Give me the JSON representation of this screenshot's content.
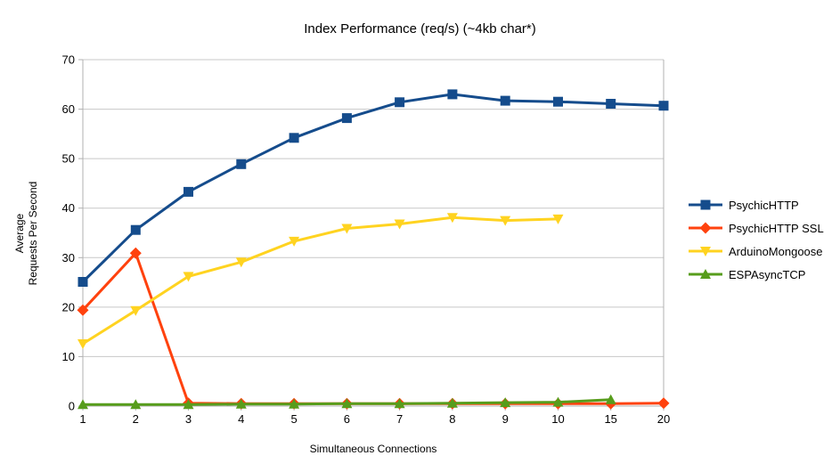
{
  "chart_data": {
    "type": "line",
    "title": "Index Performance (req/s) (~4kb char*)",
    "xlabel": "Simultaneous Connections",
    "ylabel": "Average Requests Per Second",
    "ylabel_lines": {
      "line1": "Average",
      "line2": "Requests Per Second"
    },
    "categories": [
      "1",
      "2",
      "3",
      "4",
      "5",
      "6",
      "7",
      "8",
      "9",
      "10",
      "15",
      "20"
    ],
    "yticks": [
      0,
      10,
      20,
      30,
      40,
      50,
      60,
      70
    ],
    "ylim": [
      0,
      70
    ],
    "grid": "horizontal-only",
    "legend_position": "right",
    "axis_color": "#b0b0b0",
    "grid_color": "#c8c8c8",
    "text_color": "#000000",
    "series": [
      {
        "name": "PsychicHTTP",
        "color": "#154c8c",
        "marker": "square",
        "values": [
          25.1,
          35.6,
          43.3,
          48.9,
          54.2,
          58.2,
          61.4,
          63.0,
          61.7,
          61.5,
          61.1,
          60.7
        ]
      },
      {
        "name": "PsychicHTTP SSL",
        "color": "#ff420e",
        "marker": "diamond",
        "values": [
          19.4,
          30.9,
          0.6,
          0.5,
          0.5,
          0.5,
          0.5,
          0.5,
          0.5,
          0.5,
          0.5,
          0.6
        ]
      },
      {
        "name": "ArduinoMongoose",
        "color": "#ffd320",
        "marker": "triangle-down",
        "values": [
          12.6,
          19.3,
          26.2,
          29.1,
          33.3,
          35.9,
          36.8,
          38.1,
          37.5,
          37.8,
          null,
          null
        ]
      },
      {
        "name": "ESPAsyncTCP",
        "color": "#579d1c",
        "marker": "triangle-up",
        "values": [
          0.3,
          0.3,
          0.3,
          0.4,
          0.4,
          0.5,
          0.5,
          0.6,
          0.7,
          0.8,
          1.3,
          null
        ]
      }
    ]
  }
}
